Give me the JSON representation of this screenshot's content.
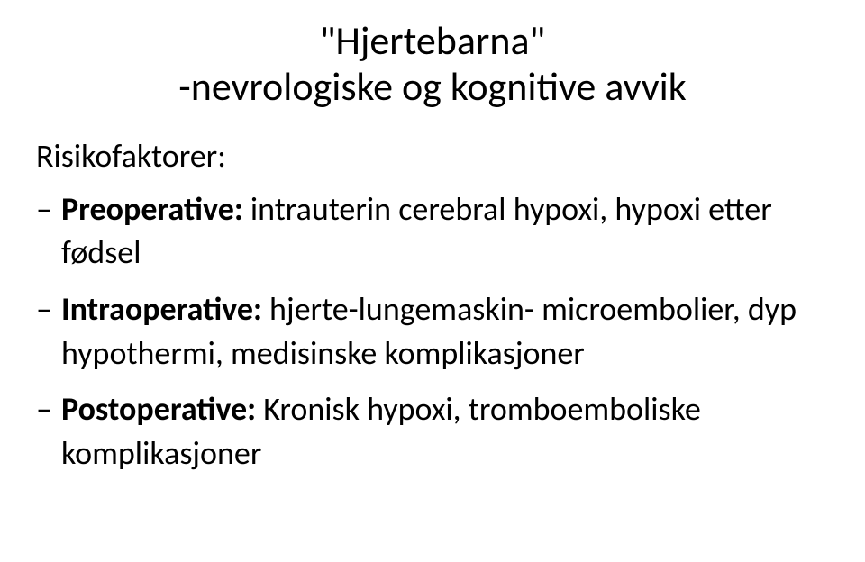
{
  "title_line1": "\"Hjertebarna\"",
  "title_line2": "-nevrologiske og kognitive avvik",
  "heading": "Risikofaktorer:",
  "items": [
    {
      "label": "Preoperative:",
      "rest": " intrauterin cerebral hypoxi, hypoxi etter fødsel"
    },
    {
      "label": "Intraoperative:",
      "rest": " hjerte-lungemaskin- microembolier, dyp hypothermi, medisinske komplikasjoner"
    },
    {
      "label": "Postoperative:",
      "rest": " Kronisk hypoxi, tromboemboliske komplikasjoner"
    }
  ],
  "colors": {
    "background": "#ffffff",
    "text": "#000000"
  },
  "typography": {
    "title_fontsize": 44,
    "body_fontsize": 36,
    "font_family": "Calibri"
  }
}
